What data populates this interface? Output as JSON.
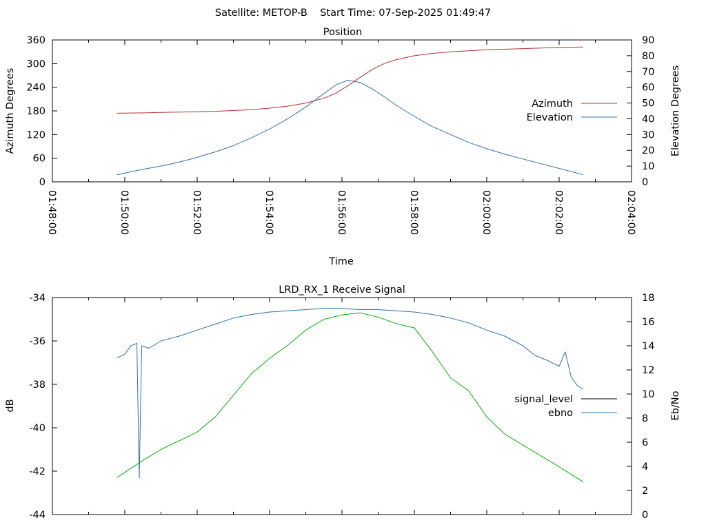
{
  "header": "Satellite: METOP-B    Start Time: 07-Sep-2025 01:49:47",
  "chart_data": [
    {
      "type": "line",
      "title": "Position",
      "xlabel": "Time",
      "ylabel": "Azimuth Degrees",
      "y2label": "Elevation Degrees",
      "xlim": [
        "01:48:00",
        "02:04:00"
      ],
      "ylim": [
        0,
        360
      ],
      "y2lim": [
        0,
        90
      ],
      "x_ticks": [
        "01:48:00",
        "01:50:00",
        "01:52:00",
        "01:54:00",
        "01:56:00",
        "01:58:00",
        "02:00:00",
        "02:02:00",
        "02:04:00"
      ],
      "y_ticks": [
        "0",
        "60",
        "120",
        "180",
        "240",
        "300",
        "360"
      ],
      "y2_ticks": [
        "0",
        "10",
        "20",
        "30",
        "40",
        "50",
        "60",
        "70",
        "80",
        "90"
      ],
      "legend_position": "right",
      "series": [
        {
          "name": "Azimuth",
          "axis": "y",
          "color": "#b03030",
          "x": [
            "01:49:47",
            "01:50:30",
            "01:51:30",
            "01:52:30",
            "01:53:30",
            "01:54:00",
            "01:54:30",
            "01:55:00",
            "01:55:30",
            "01:55:50",
            "01:56:10",
            "01:56:30",
            "01:56:50",
            "01:57:10",
            "01:57:30",
            "01:58:00",
            "01:58:30",
            "01:59:00",
            "02:00:00",
            "02:01:00",
            "02:02:00",
            "02:02:40"
          ],
          "values": [
            174,
            175,
            177,
            179,
            183,
            187,
            192,
            200,
            212,
            225,
            244,
            265,
            285,
            300,
            310,
            320,
            326,
            330,
            335,
            338,
            341,
            342
          ]
        },
        {
          "name": "Elevation",
          "axis": "y2",
          "color": "#3070a8",
          "x": [
            "01:49:47",
            "01:50:30",
            "01:51:00",
            "01:51:30",
            "01:52:00",
            "01:52:30",
            "01:53:00",
            "01:53:30",
            "01:54:00",
            "01:54:30",
            "01:55:00",
            "01:55:30",
            "01:55:50",
            "01:56:10",
            "01:56:30",
            "01:56:50",
            "01:57:10",
            "01:57:30",
            "01:58:00",
            "01:58:30",
            "01:59:00",
            "01:59:30",
            "02:00:00",
            "02:00:30",
            "02:01:00",
            "02:01:30",
            "02:02:00",
            "02:02:40"
          ],
          "values": [
            4.5,
            8,
            10,
            12.5,
            15.5,
            19,
            23,
            28,
            33.5,
            40,
            47.5,
            56,
            61.5,
            64.5,
            63,
            59,
            54,
            48.5,
            41.5,
            35,
            30,
            25,
            21,
            17.5,
            14.5,
            11.5,
            8.5,
            4.5
          ]
        }
      ]
    },
    {
      "type": "line",
      "title": "LRD_RX_1 Receive Signal",
      "xlabel": "",
      "ylabel": "dB",
      "y2label": "Eb/No",
      "xlim": [
        "01:48:00",
        "02:04:00"
      ],
      "ylim": [
        -44,
        -34
      ],
      "y2lim": [
        0,
        18
      ],
      "y_ticks": [
        "-34",
        "-36",
        "-38",
        "-40",
        "-42",
        "-44"
      ],
      "y2_ticks": [
        "0",
        "2",
        "4",
        "6",
        "8",
        "10",
        "12",
        "14",
        "16",
        "18"
      ],
      "legend_position": "right",
      "series": [
        {
          "name": "signal_level",
          "axis": "y",
          "color": "#000000",
          "x": [],
          "values": []
        },
        {
          "name": "ebno",
          "axis": "y2",
          "color": "#3070a8",
          "x": [
            "01:49:47",
            "01:50:00",
            "01:50:10",
            "01:50:20",
            "01:50:24",
            "01:50:28",
            "01:50:40",
            "01:51:00",
            "01:51:30",
            "01:52:00",
            "01:52:30",
            "01:53:00",
            "01:53:30",
            "01:54:00",
            "01:54:30",
            "01:55:00",
            "01:55:30",
            "01:56:00",
            "01:56:30",
            "01:57:00",
            "01:57:30",
            "01:58:00",
            "01:58:30",
            "01:59:00",
            "01:59:30",
            "02:00:00",
            "02:00:30",
            "02:01:00",
            "02:01:20",
            "02:01:40",
            "02:02:00",
            "02:02:10",
            "02:02:20",
            "02:02:30",
            "02:02:40"
          ],
          "values": [
            13,
            13.3,
            14,
            14.2,
            3,
            14,
            13.8,
            14.4,
            14.8,
            15.3,
            15.8,
            16.3,
            16.6,
            16.8,
            16.9,
            17,
            17.1,
            17.1,
            17,
            17,
            16.9,
            16.8,
            16.6,
            16.3,
            15.9,
            15.3,
            14.8,
            14,
            13.2,
            12.8,
            12.3,
            13.5,
            11.4,
            10.7,
            10.4
          ]
        },
        {
          "name": "",
          "axis": "y",
          "color": "#00b000",
          "x": [
            "01:49:47",
            "01:50:30",
            "01:51:00",
            "01:51:30",
            "01:52:00",
            "01:52:30",
            "01:53:00",
            "01:53:30",
            "01:54:00",
            "01:54:30",
            "01:55:00",
            "01:55:30",
            "01:56:00",
            "01:56:30",
            "01:57:00",
            "01:57:30",
            "01:58:00",
            "01:58:30",
            "01:59:00",
            "01:59:30",
            "02:00:00",
            "02:00:30",
            "02:01:00",
            "02:01:30",
            "02:02:00",
            "02:02:40"
          ],
          "values": [
            -42.3,
            -41.5,
            -41,
            -40.6,
            -40.2,
            -39.5,
            -38.5,
            -37.5,
            -36.8,
            -36.2,
            -35.5,
            -35,
            -34.8,
            -34.7,
            -34.9,
            -35.2,
            -35.4,
            -36.5,
            -37.7,
            -38.3,
            -39.5,
            -40.3,
            -40.8,
            -41.3,
            -41.8,
            -42.5
          ]
        }
      ]
    }
  ]
}
